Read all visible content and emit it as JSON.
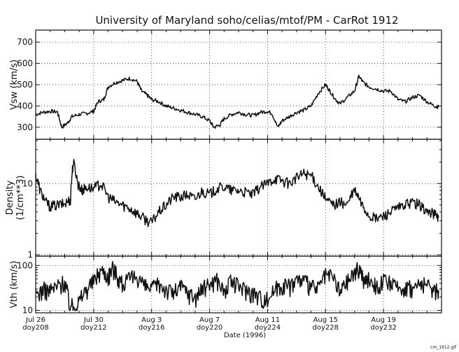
{
  "title": "University of Maryland  soho/celias/mtof/PM - CarRot 1912",
  "xlabel": "Date (1996)",
  "footer_filename": "cm_1912.gif",
  "colors": {
    "ink": "#111111",
    "background": "#ffffff"
  },
  "chart_data": [
    {
      "type": "line",
      "ylabel": "Vsw (km/s)",
      "scale": "linear",
      "ylim": [
        250,
        750
      ],
      "yticks": [
        "300",
        "400",
        "500",
        "600",
        "700"
      ],
      "grid": "dotted",
      "x": [
        208,
        208.5,
        209,
        209.5,
        209.8,
        210.2,
        210.5,
        211,
        211.5,
        212,
        212.3,
        212.7,
        213,
        213.5,
        214,
        214.5,
        215,
        215.3,
        215.7,
        216,
        216.5,
        217,
        217.5,
        218,
        218.5,
        219,
        219.5,
        220,
        220.3,
        220.7,
        221,
        221.5,
        222,
        222.5,
        223,
        223.5,
        224,
        224.3,
        224.7,
        225,
        225.5,
        226,
        226.5,
        227,
        227.5,
        228,
        228.3,
        228.7,
        229,
        229.5,
        230,
        230.3,
        230.6,
        231,
        231.5,
        232,
        232.5,
        233,
        233.5,
        234,
        234.5,
        235,
        235.5,
        235.8
      ],
      "y": [
        360,
        370,
        375,
        372,
        300,
        320,
        350,
        360,
        365,
        375,
        420,
        430,
        490,
        510,
        520,
        530,
        515,
        470,
        450,
        430,
        420,
        400,
        390,
        380,
        370,
        360,
        350,
        330,
        300,
        310,
        340,
        360,
        370,
        360,
        355,
        370,
        375,
        365,
        300,
        330,
        350,
        370,
        380,
        400,
        460,
        500,
        470,
        430,
        410,
        440,
        470,
        540,
        510,
        490,
        480,
        470,
        470,
        430,
        420,
        440,
        450,
        420,
        400,
        395
      ]
    },
    {
      "type": "line",
      "ylabel_lines": [
        "Density",
        "(1/cm**3)"
      ],
      "scale": "log",
      "ylim": [
        1,
        40
      ],
      "yticks": [
        "1",
        "10"
      ],
      "grid": "dotted",
      "x": [
        208,
        208.3,
        208.7,
        209,
        209.5,
        210,
        210.4,
        210.6,
        210.9,
        211.2,
        211.5,
        212,
        212.5,
        213,
        213.5,
        214,
        214.5,
        215,
        215.5,
        216,
        216.5,
        217,
        217.5,
        218,
        218.5,
        219,
        219.5,
        220,
        220.5,
        221,
        221.5,
        222,
        222.5,
        223,
        223.5,
        224,
        224.5,
        225,
        225.5,
        226,
        226.5,
        227,
        227.5,
        228,
        228.5,
        229,
        229.5,
        230,
        230.5,
        231,
        231.5,
        232,
        232.5,
        233,
        233.5,
        234,
        234.5,
        235,
        235.5,
        235.8
      ],
      "y": [
        13,
        8,
        5.5,
        4.8,
        5,
        5.2,
        6,
        20,
        10,
        8,
        9,
        8.5,
        10,
        6.5,
        5.5,
        5,
        4.5,
        3.8,
        3.2,
        2.8,
        4,
        5,
        6.5,
        6.5,
        7,
        6,
        8,
        7,
        8.5,
        9,
        8,
        8,
        7.5,
        7,
        9,
        10,
        12,
        11,
        10,
        12,
        14,
        13,
        9,
        6,
        5,
        5.5,
        5,
        8,
        5,
        3.5,
        3.2,
        3.5,
        4,
        4.5,
        5,
        5.5,
        5,
        4,
        3.8,
        3.3
      ]
    },
    {
      "type": "line",
      "ylabel": "Vth (km/s)",
      "scale": "log",
      "ylim": [
        9.5,
        150
      ],
      "yticks": [
        "10",
        "100"
      ],
      "grid": "dotted",
      "x": [
        208,
        208.5,
        209,
        209.5,
        210,
        210.3,
        210.7,
        211,
        211.5,
        212,
        212.5,
        213,
        213.3,
        213.7,
        214,
        214.5,
        215,
        215.5,
        216,
        216.5,
        217,
        217.5,
        218,
        218.5,
        219,
        219.5,
        220,
        220.5,
        221,
        221.5,
        222,
        222.5,
        223,
        223.5,
        224,
        224.5,
        225,
        225.5,
        226,
        226.5,
        227,
        227.5,
        228,
        228.5,
        229,
        229.5,
        230,
        230.3,
        230.7,
        231,
        231.5,
        232,
        232.5,
        233,
        233.5,
        234,
        234.5,
        235,
        235.5,
        235.8
      ],
      "y": [
        22,
        30,
        28,
        35,
        45,
        14,
        12,
        16,
        30,
        45,
        80,
        60,
        90,
        55,
        40,
        50,
        60,
        35,
        30,
        40,
        30,
        25,
        35,
        25,
        20,
        30,
        40,
        50,
        25,
        45,
        35,
        30,
        25,
        20,
        18,
        30,
        40,
        35,
        50,
        45,
        35,
        30,
        60,
        55,
        25,
        45,
        70,
        90,
        40,
        55,
        35,
        45,
        40,
        30,
        35,
        30,
        40,
        35,
        30,
        28
      ]
    }
  ],
  "x_axis": {
    "range": [
      208,
      236
    ],
    "ticks": [
      {
        "date": "Jul 26",
        "doy": "doy208",
        "day": 208
      },
      {
        "date": "Jul 30",
        "doy": "doy212",
        "day": 212
      },
      {
        "date": "Aug 3",
        "doy": "doy216",
        "day": 216
      },
      {
        "date": "Aug 7",
        "doy": "doy220",
        "day": 220
      },
      {
        "date": "Aug 11",
        "doy": "doy224",
        "day": 224
      },
      {
        "date": "Aug 15",
        "doy": "doy228",
        "day": 228
      },
      {
        "date": "Aug 19",
        "doy": "doy232",
        "day": 232
      }
    ]
  }
}
